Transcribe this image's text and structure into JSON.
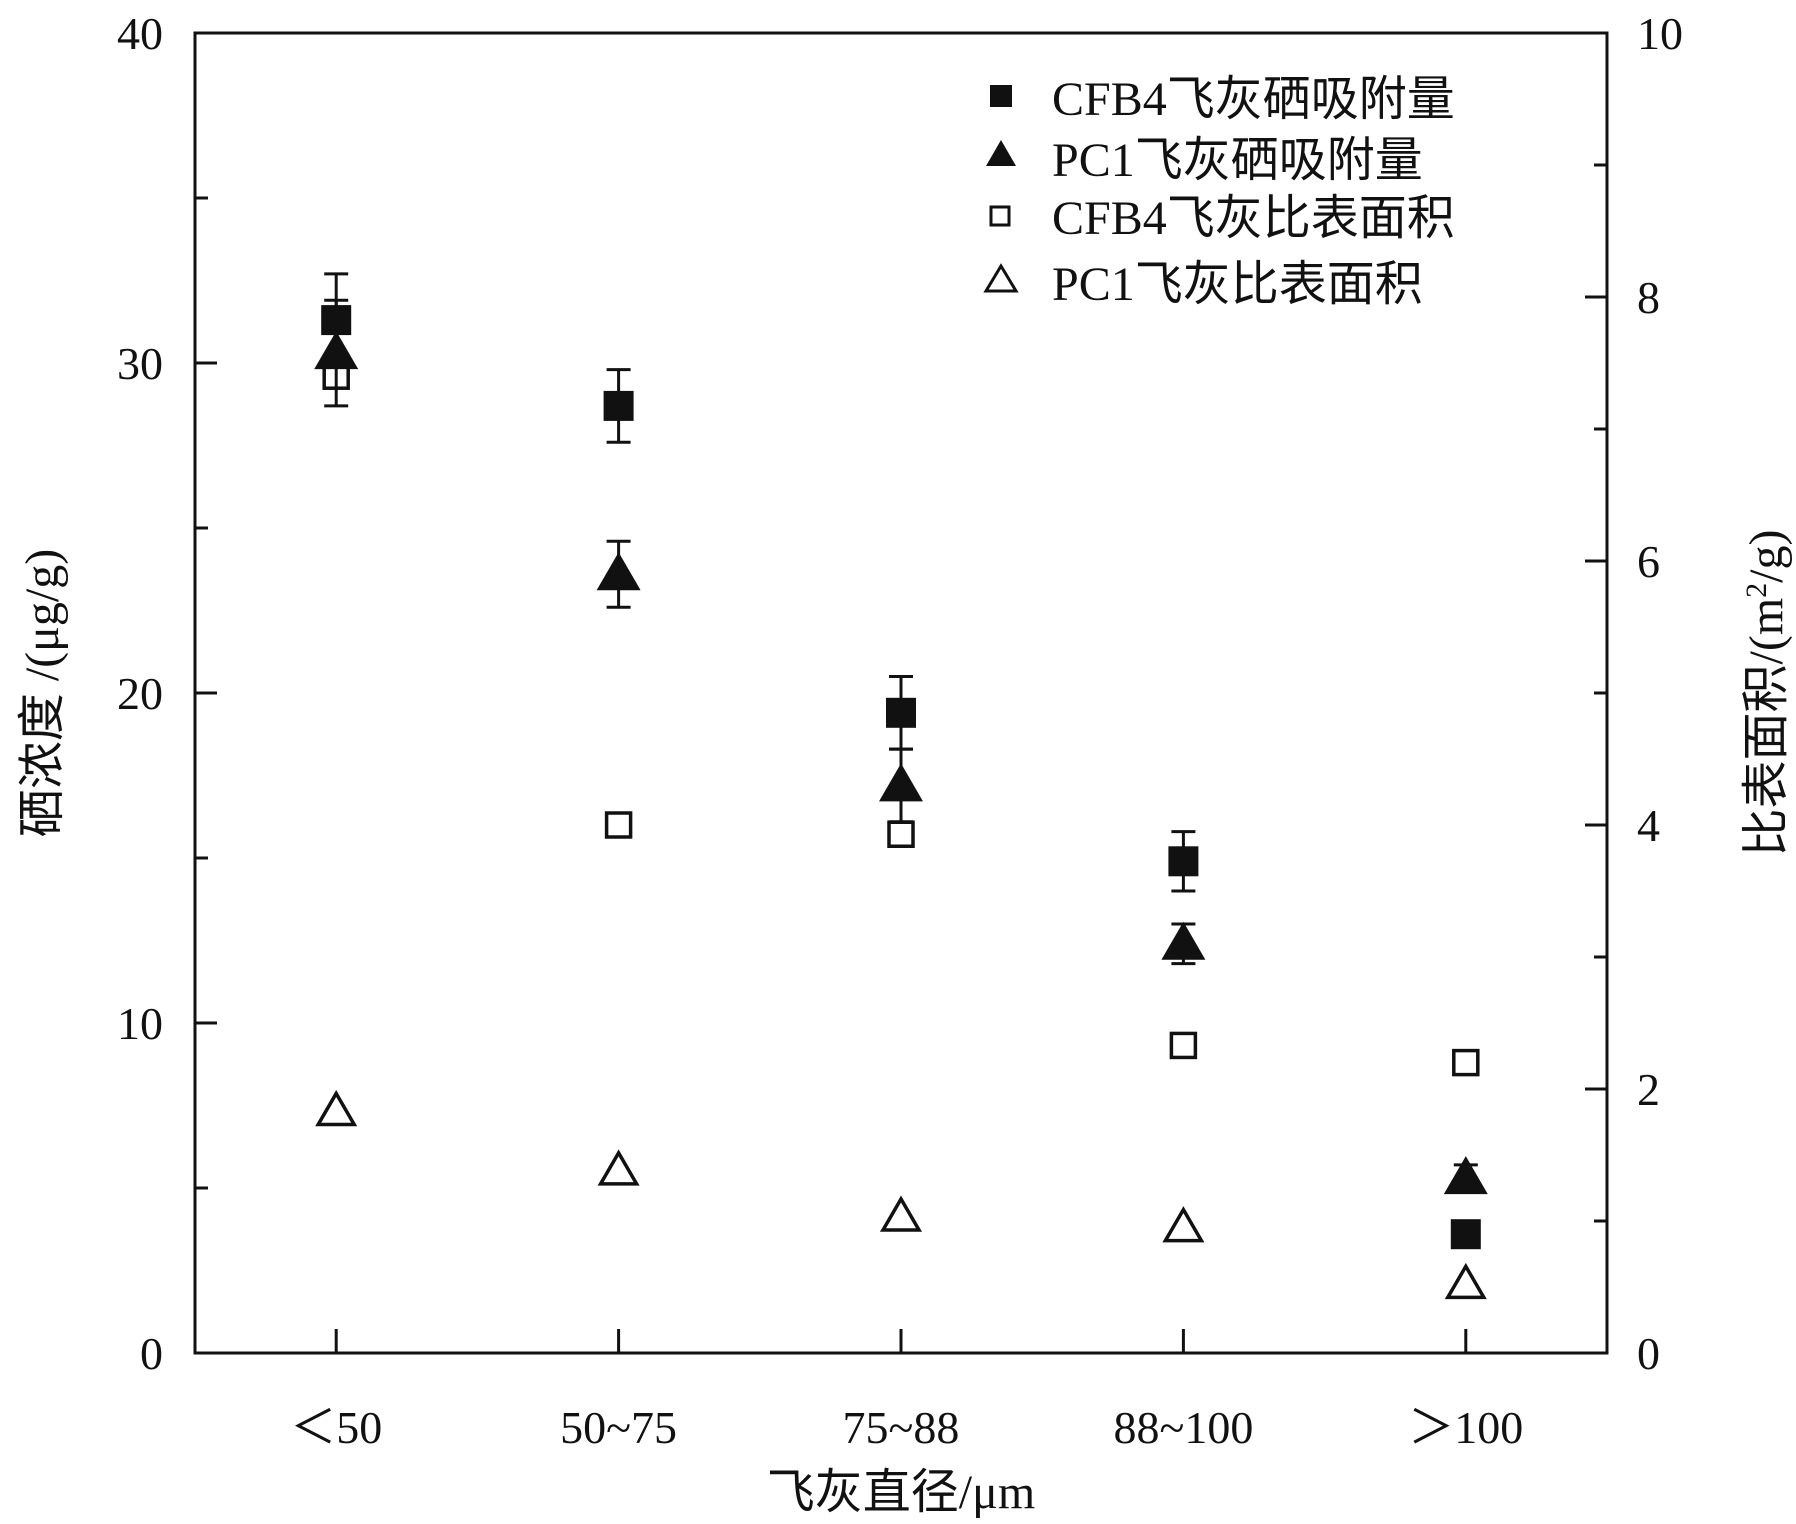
{
  "chart_data": {
    "type": "scatter",
    "categories": [
      "＜50",
      "50~75",
      "75~88",
      "88~100",
      "＞100"
    ],
    "xlabel": "飞灰直径/μm",
    "ylabel_left": "硒浓度 /(μg/g)",
    "ylabel_right": "比表面积/(m²/g)",
    "ylim_left": [
      0,
      40
    ],
    "ylim_right": [
      0,
      10
    ],
    "yticks_left": [
      "0",
      "10",
      "20",
      "30",
      "40"
    ],
    "yticks_right": [
      "0",
      "2",
      "4",
      "6",
      "8",
      "10"
    ],
    "legend_position": "top-right",
    "grid": false,
    "series": [
      {
        "name": "CFB4飞灰硒吸附量",
        "axis": "left",
        "marker": "filled-square",
        "values": [
          31.3,
          28.7,
          19.4,
          14.9,
          3.6
        ],
        "errors": [
          1.4,
          1.1,
          1.1,
          0.9,
          null
        ]
      },
      {
        "name": "PC1飞灰硒吸附量",
        "axis": "left",
        "marker": "filled-triangle",
        "values": [
          30.3,
          23.6,
          17.2,
          12.4,
          5.3
        ],
        "errors": [
          1.6,
          1.0,
          1.1,
          0.6,
          0.4
        ]
      },
      {
        "name": "CFB4飞灰比表面积",
        "axis": "right",
        "marker": "open-square",
        "values": [
          7.4,
          4.0,
          3.93,
          2.33,
          2.2
        ],
        "errors": null
      },
      {
        "name": "PC1飞灰比表面积",
        "axis": "right",
        "marker": "open-triangle",
        "values": [
          1.83,
          1.38,
          1.03,
          0.95,
          0.52
        ],
        "errors": null
      }
    ]
  }
}
